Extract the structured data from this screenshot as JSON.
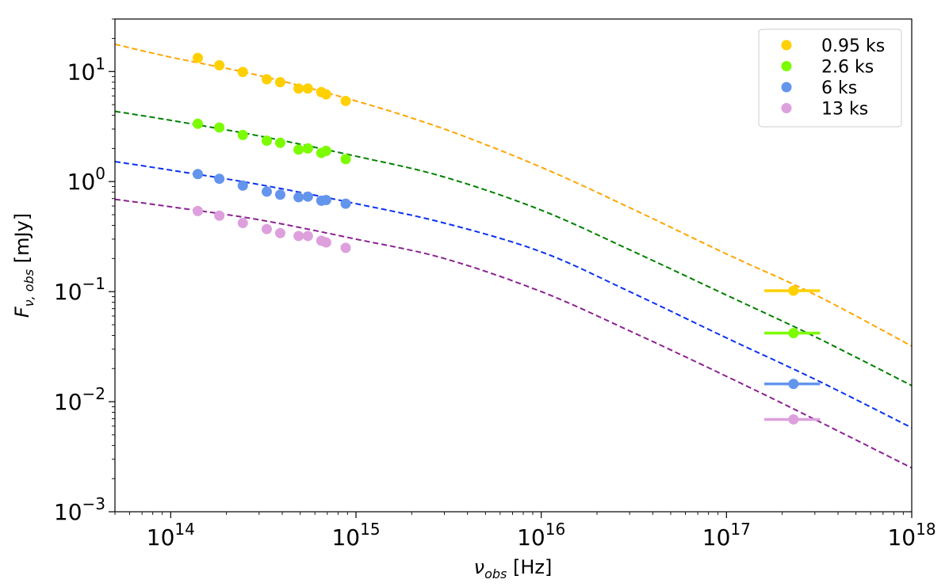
{
  "chart_data": {
    "type": "scatter",
    "xscale": "log",
    "yscale": "log",
    "xlim": [
      50000000000000.0,
      1e+18
    ],
    "ylim": [
      0.001,
      30
    ],
    "xlabel": {
      "main": "ν",
      "sub": "obs",
      "unit": " [Hz]"
    },
    "ylabel": {
      "main": "F",
      "sub": "ν, obs",
      "unit": " [mJy]"
    },
    "x_ticks": [
      {
        "value": 100000000000000.0,
        "base": "10",
        "exp": "14"
      },
      {
        "value": 1000000000000000.0,
        "base": "10",
        "exp": "15"
      },
      {
        "value": 1e+16,
        "base": "10",
        "exp": "16"
      },
      {
        "value": 1e+17,
        "base": "10",
        "exp": "17"
      },
      {
        "value": 1e+18,
        "base": "10",
        "exp": "18"
      }
    ],
    "y_ticks": [
      {
        "value": 10,
        "base": "10",
        "exp": "1"
      },
      {
        "value": 1,
        "base": "10",
        "exp": "0"
      },
      {
        "value": 0.1,
        "base": "10",
        "exp": "−1"
      },
      {
        "value": 0.01,
        "base": "10",
        "exp": "−2"
      },
      {
        "value": 0.001,
        "base": "10",
        "exp": "−3"
      }
    ],
    "legend_position": "top-right",
    "series": [
      {
        "name": "0.95 ks",
        "color": "#ffd000",
        "model_color": "#ffa500",
        "optical_x": [
          140000000000000.0,
          183000000000000.0,
          245000000000000.0,
          330000000000000.0,
          390000000000000.0,
          490000000000000.0,
          550000000000000.0,
          650000000000000.0,
          690000000000000.0,
          880000000000000.0
        ],
        "optical_y": [
          13.3,
          11.4,
          9.9,
          8.5,
          8.0,
          7.0,
          7.0,
          6.5,
          6.2,
          5.4
        ],
        "xray": {
          "x": 2.3e+17,
          "y": 0.102,
          "xerr_low": 1.6e+17,
          "xerr_high": 3.2e+17
        },
        "model": [
          [
            50000000000000.0,
            17.7
          ],
          [
            100000000000000.0,
            13.5
          ],
          [
            300000000000000.0,
            9.2
          ],
          [
            1000000000000000.0,
            5.4
          ],
          [
            3000000000000000.0,
            3.0
          ],
          [
            1e+16,
            1.35
          ],
          [
            3e+16,
            0.58
          ],
          [
            1e+17,
            0.22
          ],
          [
            3e+17,
            0.094
          ],
          [
            1e+18,
            0.032
          ]
        ]
      },
      {
        "name": "2.6 ks",
        "color": "#7cfc00",
        "model_color": "#008000",
        "optical_x": [
          140000000000000.0,
          183000000000000.0,
          245000000000000.0,
          330000000000000.0,
          390000000000000.0,
          490000000000000.0,
          550000000000000.0,
          650000000000000.0,
          690000000000000.0,
          880000000000000.0
        ],
        "optical_y": [
          3.35,
          3.1,
          2.65,
          2.35,
          2.25,
          1.95,
          2.0,
          1.82,
          1.9,
          1.6
        ],
        "xray": {
          "x": 2.3e+17,
          "y": 0.042,
          "xerr_low": 1.6e+17,
          "xerr_high": 3.2e+17
        },
        "model": [
          [
            50000000000000.0,
            4.35
          ],
          [
            100000000000000.0,
            3.6
          ],
          [
            300000000000000.0,
            2.6
          ],
          [
            1000000000000000.0,
            1.7
          ],
          [
            3000000000000000.0,
            1.1
          ],
          [
            1e+16,
            0.55
          ],
          [
            3e+16,
            0.24
          ],
          [
            1e+17,
            0.093
          ],
          [
            3e+17,
            0.039
          ],
          [
            1e+18,
            0.014
          ]
        ]
      },
      {
        "name": "6 ks",
        "color": "#6495ed",
        "model_color": "#0a32f0",
        "optical_x": [
          140000000000000.0,
          183000000000000.0,
          245000000000000.0,
          330000000000000.0,
          390000000000000.0,
          490000000000000.0,
          550000000000000.0,
          650000000000000.0,
          690000000000000.0,
          880000000000000.0
        ],
        "optical_y": [
          1.17,
          1.06,
          0.92,
          0.81,
          0.76,
          0.72,
          0.73,
          0.67,
          0.68,
          0.63
        ],
        "xray": {
          "x": 2.3e+17,
          "y": 0.0145,
          "xerr_low": 1.6e+17,
          "xerr_high": 3.2e+17
        },
        "model": [
          [
            50000000000000.0,
            1.52
          ],
          [
            100000000000000.0,
            1.27
          ],
          [
            300000000000000.0,
            0.94
          ],
          [
            1000000000000000.0,
            0.63
          ],
          [
            3000000000000000.0,
            0.42
          ],
          [
            1e+16,
            0.23
          ],
          [
            3e+16,
            0.1
          ],
          [
            1e+17,
            0.038
          ],
          [
            3e+17,
            0.016
          ],
          [
            1e+18,
            0.0058
          ]
        ]
      },
      {
        "name": "13 ks",
        "color": "#dda0dd",
        "model_color": "#8b2290",
        "optical_x": [
          140000000000000.0,
          183000000000000.0,
          245000000000000.0,
          330000000000000.0,
          390000000000000.0,
          490000000000000.0,
          550000000000000.0,
          650000000000000.0,
          690000000000000.0,
          880000000000000.0
        ],
        "optical_y": [
          0.54,
          0.49,
          0.42,
          0.37,
          0.34,
          0.32,
          0.32,
          0.29,
          0.28,
          0.25
        ],
        "xray": {
          "x": 2.3e+17,
          "y": 0.0069,
          "xerr_low": 1.6e+17,
          "xerr_high": 3.2e+17
        },
        "model": [
          [
            50000000000000.0,
            0.69
          ],
          [
            100000000000000.0,
            0.59
          ],
          [
            300000000000000.0,
            0.45
          ],
          [
            1000000000000000.0,
            0.3
          ],
          [
            3000000000000000.0,
            0.2
          ],
          [
            1e+16,
            0.1
          ],
          [
            3e+16,
            0.044
          ],
          [
            1e+17,
            0.017
          ],
          [
            3e+17,
            0.0069
          ],
          [
            1e+18,
            0.0025
          ]
        ]
      }
    ]
  }
}
